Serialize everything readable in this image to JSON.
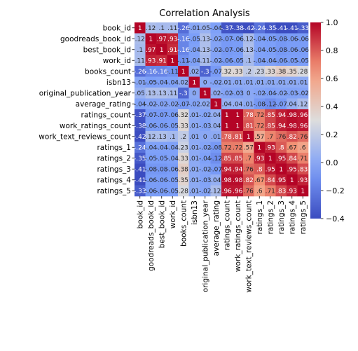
{
  "chart_data": {
    "type": "heatmap",
    "title": "Correlation Analysis",
    "labels": [
      "book_id",
      "goodreads_book_id",
      "best_book_id",
      "work_id",
      "books_count",
      "isbn13",
      "original_publication_year",
      "average_rating",
      "ratings_count",
      "work_ratings_count",
      "work_text_reviews_count",
      "ratings_1",
      "ratings_2",
      "ratings_3",
      "ratings_4",
      "ratings_5"
    ],
    "matrix": [
      [
        1.0,
        0.12,
        0.1,
        0.11,
        -0.26,
        -0.01,
        0.05,
        -0.04,
        -0.37,
        -0.38,
        -0.42,
        -0.24,
        -0.35,
        -0.41,
        -0.41,
        -0.33
      ],
      [
        0.12,
        1.0,
        0.97,
        0.93,
        -0.16,
        -0.05,
        0.13,
        -0.02,
        -0.07,
        -0.06,
        0.12,
        -0.04,
        -0.05,
        -0.08,
        -0.06,
        -0.06
      ],
      [
        0.1,
        0.97,
        1.0,
        0.91,
        -0.16,
        -0.04,
        0.13,
        -0.02,
        -0.07,
        -0.06,
        0.13,
        -0.04,
        -0.05,
        -0.08,
        -0.06,
        -0.06
      ],
      [
        0.11,
        0.93,
        0.91,
        1.0,
        -0.11,
        -0.04,
        0.11,
        -0.02,
        -0.06,
        -0.05,
        0.1,
        -0.04,
        -0.04,
        -0.06,
        -0.05,
        -0.05
      ],
      [
        -0.26,
        -0.16,
        -0.16,
        -0.11,
        1.0,
        0.02,
        -0.3,
        -0.07,
        0.32,
        0.33,
        0.2,
        0.23,
        0.33,
        0.38,
        0.35,
        0.28
      ],
      [
        -0.01,
        -0.05,
        -0.04,
        -0.04,
        0.02,
        1.0,
        0.0,
        -0.02,
        0.01,
        0.01,
        0.01,
        0.01,
        0.01,
        0.01,
        0.01,
        0.01
      ],
      [
        0.05,
        0.13,
        0.13,
        0.11,
        -0.3,
        0.0,
        1.0,
        0.02,
        -0.02,
        -0.03,
        0.0,
        -0.02,
        -0.04,
        -0.02,
        -0.03,
        -0.02
      ],
      [
        -0.04,
        -0.02,
        -0.02,
        -0.02,
        -0.07,
        -0.02,
        0.02,
        1.0,
        0.04,
        0.04,
        0.01,
        -0.08,
        -0.12,
        -0.07,
        0.04,
        0.12
      ],
      [
        -0.37,
        -0.07,
        -0.07,
        -0.06,
        0.32,
        0.01,
        -0.02,
        0.04,
        1.0,
        1.0,
        0.78,
        0.72,
        0.85,
        0.94,
        0.98,
        0.96
      ],
      [
        -0.38,
        -0.06,
        -0.06,
        -0.05,
        0.33,
        0.01,
        -0.03,
        0.04,
        1.0,
        1.0,
        0.81,
        0.72,
        0.85,
        0.94,
        0.98,
        0.96
      ],
      [
        -0.42,
        0.12,
        0.13,
        0.1,
        0.2,
        0.01,
        0.0,
        0.01,
        0.78,
        0.81,
        1.0,
        0.57,
        0.7,
        0.76,
        0.82,
        0.76
      ],
      [
        -0.24,
        -0.04,
        -0.04,
        -0.04,
        0.23,
        0.01,
        -0.02,
        -0.08,
        0.72,
        0.72,
        0.57,
        1.0,
        0.93,
        0.8,
        0.67,
        0.6
      ],
      [
        -0.35,
        -0.05,
        -0.05,
        -0.04,
        0.33,
        0.01,
        -0.04,
        -0.12,
        0.85,
        0.85,
        0.7,
        0.93,
        1.0,
        0.95,
        0.84,
        0.71
      ],
      [
        -0.41,
        -0.08,
        -0.08,
        -0.06,
        0.38,
        0.01,
        -0.02,
        -0.07,
        0.94,
        0.94,
        0.76,
        0.8,
        0.95,
        1.0,
        0.95,
        0.83
      ],
      [
        -0.41,
        -0.06,
        -0.06,
        -0.05,
        0.35,
        0.01,
        -0.03,
        0.04,
        0.98,
        0.98,
        0.82,
        0.67,
        0.84,
        0.95,
        1.0,
        0.93
      ],
      [
        -0.33,
        -0.06,
        -0.06,
        -0.05,
        0.28,
        0.01,
        -0.02,
        0.12,
        0.96,
        0.96,
        0.76,
        0.6,
        0.71,
        0.83,
        0.93,
        1.0
      ]
    ],
    "value_format": "2 significant digits, trailing zeros dropped",
    "colorbar": {
      "min": -0.4,
      "max": 1.0,
      "ticks": [
        "1.0",
        "0.8",
        "0.6",
        "0.4",
        "0.2",
        "0.0",
        "−0.2",
        "−0.4"
      ],
      "tick_values": [
        1.0,
        0.8,
        0.6,
        0.4,
        0.2,
        0.0,
        -0.2,
        -0.4
      ]
    },
    "colormap": "coolwarm",
    "colors": {
      "low": "#3b4cc0",
      "mid": "#dddddd",
      "high": "#b40426"
    }
  }
}
